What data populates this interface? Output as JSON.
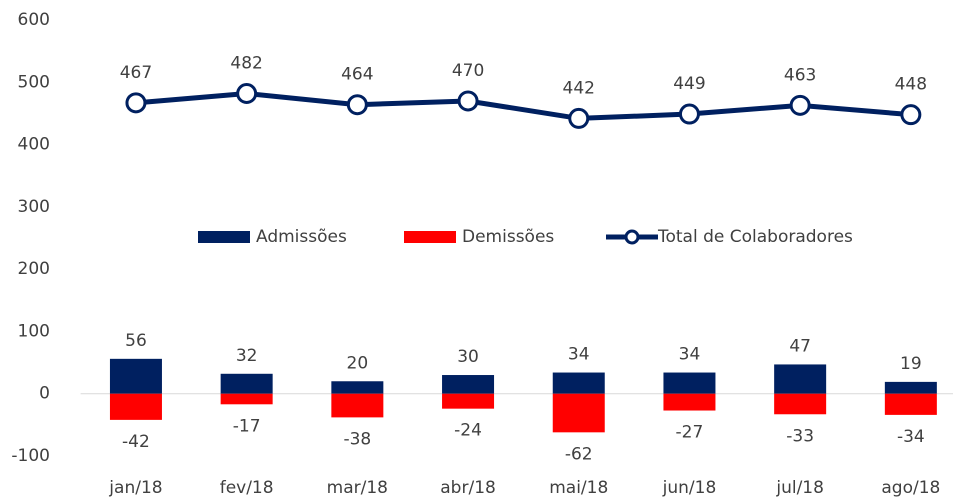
{
  "chart_data": {
    "type": "bar_line",
    "categories": [
      "jan/18",
      "fev/18",
      "mar/18",
      "abr/18",
      "mai/18",
      "jun/18",
      "jul/18",
      "ago/18"
    ],
    "series": [
      {
        "name": "Admissões",
        "type": "bar",
        "color": "#002060",
        "values": [
          56,
          32,
          20,
          30,
          34,
          34,
          47,
          19
        ]
      },
      {
        "name": "Demissões",
        "type": "bar",
        "color": "#ff0000",
        "values": [
          -42,
          -17,
          -38,
          -24,
          -62,
          -27,
          -33,
          -34
        ]
      },
      {
        "name": "Total de Colaboradores",
        "type": "line",
        "color": "#002060",
        "values": [
          467,
          482,
          464,
          470,
          442,
          449,
          463,
          448
        ]
      }
    ],
    "ylim": [
      -100,
      600
    ],
    "yticks": [
      -100,
      0,
      100,
      200,
      300,
      400,
      500,
      600
    ],
    "grid": false,
    "legend": "center"
  }
}
